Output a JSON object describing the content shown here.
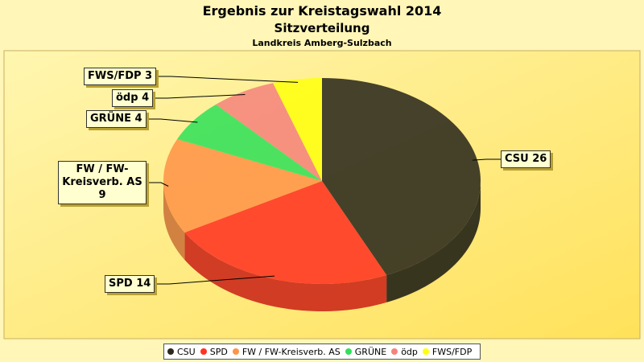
{
  "chart_data": {
    "type": "pie",
    "title": "Ergebnis zur Kreistagswahl 2014",
    "subtitles": [
      "Sitzverteilung",
      "Landkreis Amberg-Sulzbach"
    ],
    "categories": [
      "CSU",
      "SPD",
      "FW / FW-Kreisverb. AS",
      "GRÜNE",
      "ödp",
      "FWS/FDP"
    ],
    "values": [
      26,
      14,
      9,
      4,
      4,
      3
    ],
    "value_labels": [
      "CSU 26",
      "SPD 14",
      "FW / FW-Kreisverb. AS 9",
      "GRÜNE 4",
      "ödp 4",
      "FWS/FDP 3"
    ],
    "colors": [
      "#2b291c",
      "#ff3322",
      "#ff9448",
      "#33e05a",
      "#f5847c",
      "#ffff10"
    ]
  }
}
